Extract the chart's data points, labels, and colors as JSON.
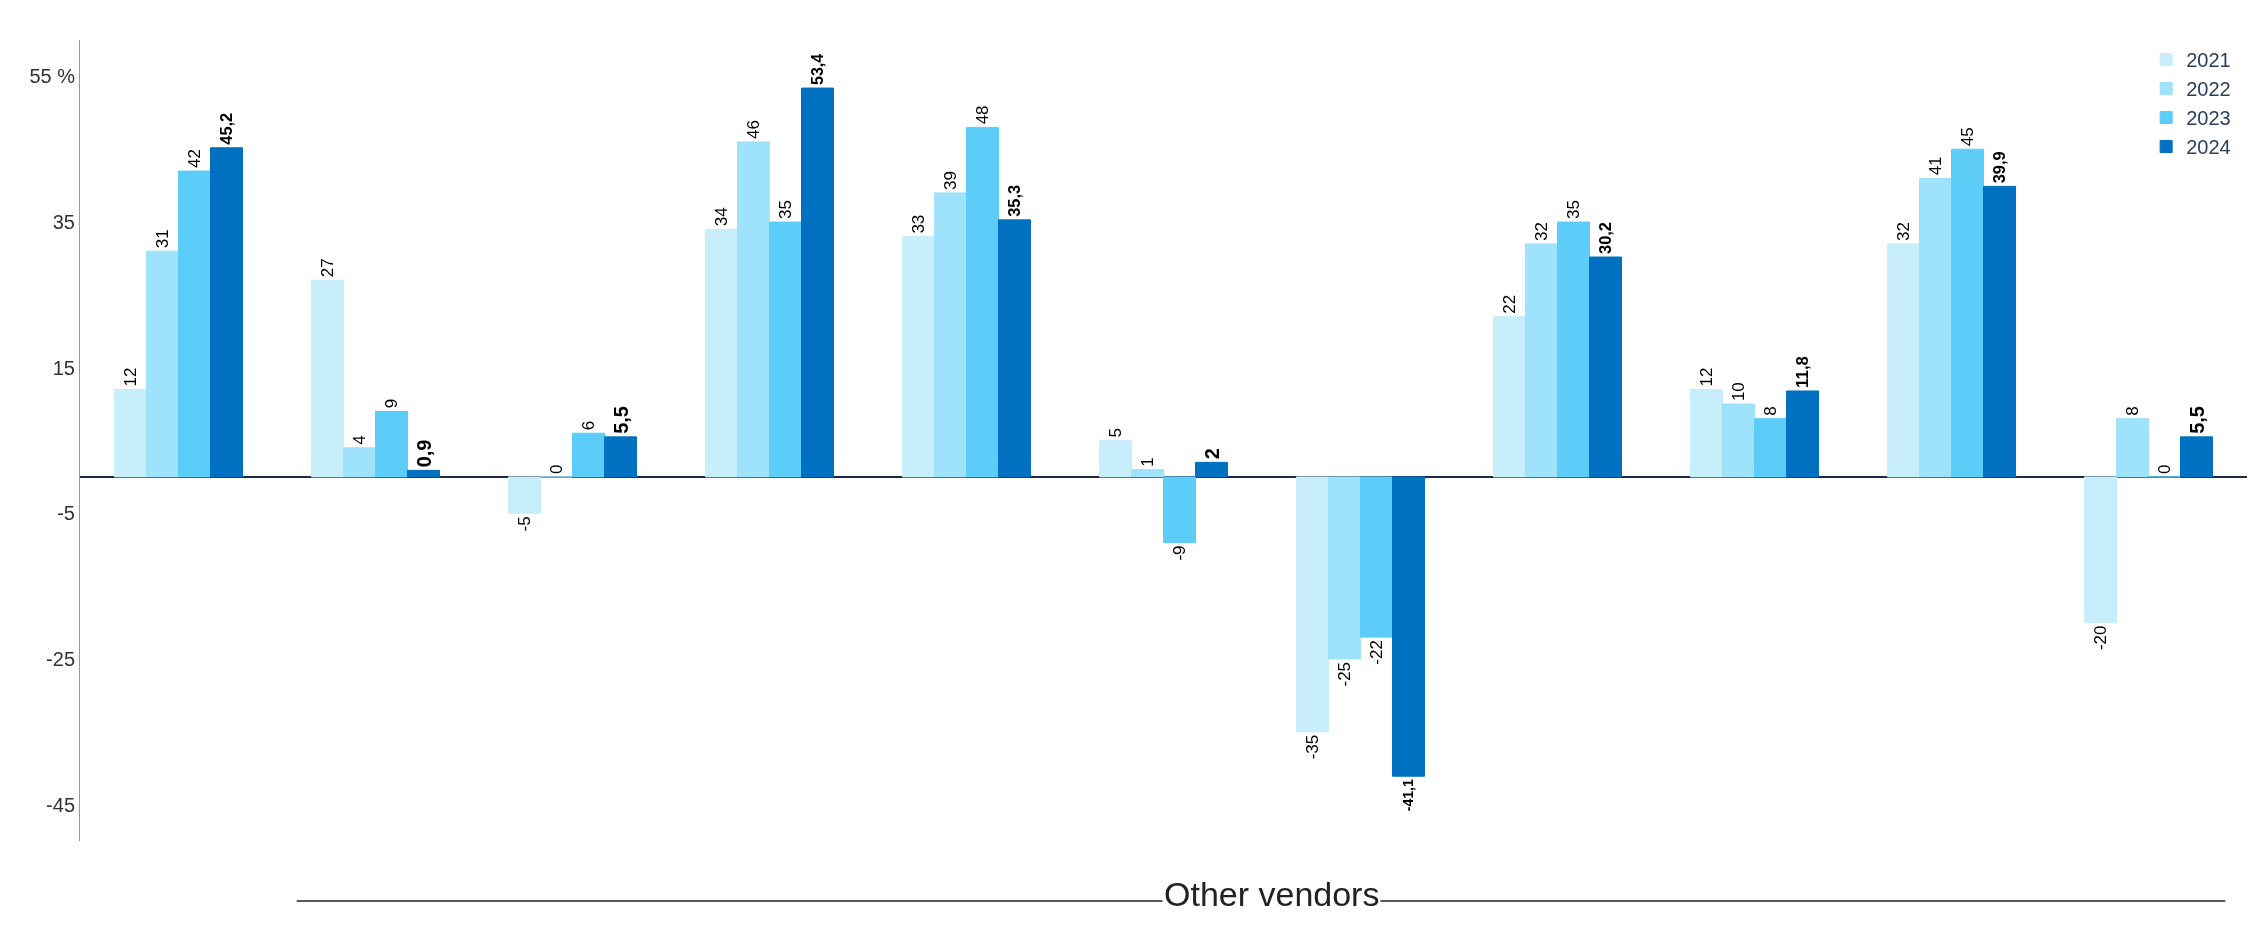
{
  "chart_data": {
    "type": "bar",
    "categories": [
      null,
      null,
      null,
      null,
      null,
      null,
      null,
      null,
      null,
      null,
      null
    ],
    "series": [
      {
        "name": "2021",
        "color": "#c8eefc",
        "values": [
          12,
          27,
          -5,
          34,
          33,
          5,
          -35,
          22,
          12,
          32,
          -20
        ],
        "value_labels": [
          "12",
          "27",
          "-5",
          "34",
          "33",
          "5",
          "-35",
          "22",
          "12",
          "32",
          "-20"
        ]
      },
      {
        "name": "2022",
        "color": "#9ee2fb",
        "values": [
          31,
          4,
          0,
          46,
          39,
          1,
          -25,
          32,
          10,
          41,
          8
        ],
        "value_labels": [
          "31",
          "4",
          "0",
          "46",
          "39",
          "1",
          "-25",
          "32",
          "10",
          "41",
          "8"
        ]
      },
      {
        "name": "2023",
        "color": "#5ccdf8",
        "values": [
          42,
          9,
          6,
          35,
          48,
          -9,
          -22,
          35,
          8,
          45,
          0
        ],
        "value_labels": [
          "42",
          "9",
          "6",
          "35",
          "48",
          "-9",
          "-22",
          "35",
          "8",
          "45",
          "0"
        ]
      },
      {
        "name": "2024",
        "color": "#0070c0",
        "values": [
          45.2,
          0.9,
          5.5,
          53.4,
          35.3,
          2,
          -41.1,
          30.2,
          11.8,
          39.9,
          5.5
        ],
        "value_labels": [
          "45,2",
          "0,9",
          "5,5",
          "53,4",
          "35,3",
          "2",
          "-41,1",
          "30,2",
          "11,8",
          "39,9",
          "5,5"
        ]
      }
    ],
    "ylim": [
      -50,
      60
    ],
    "yticks": [
      {
        "value": 55,
        "label": "55 %"
      },
      35,
      15,
      -5,
      -25,
      -45
    ],
    "tick_labels": "y",
    "legend": "top right",
    "annotations": [
      "Other vendors"
    ]
  }
}
